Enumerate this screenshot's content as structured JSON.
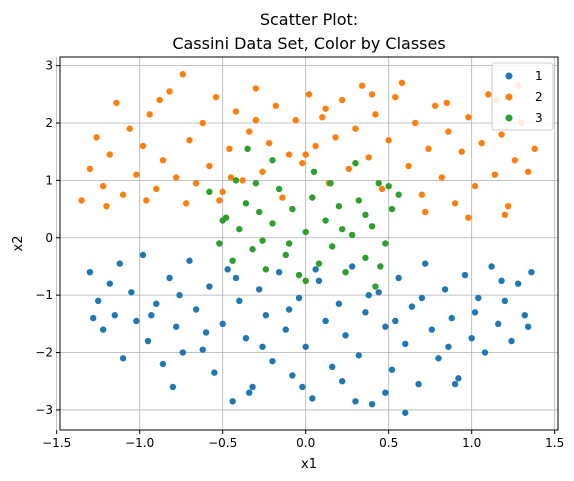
{
  "chart_data": {
    "type": "scatter",
    "title": [
      "Scatter Plot:",
      "Cassini Data Set, Color by Classes"
    ],
    "xlabel": "x1",
    "ylabel": "x2",
    "xlim": [
      -1.48,
      1.52
    ],
    "ylim": [
      -3.35,
      3.15
    ],
    "xticks": [
      -1.5,
      -1.0,
      -0.5,
      0.0,
      0.5,
      1.0,
      1.5
    ],
    "xtick_labels": [
      "−1.5",
      "−1.0",
      "−0.5",
      "0.0",
      "0.5",
      "1.0",
      "1.5"
    ],
    "yticks": [
      -3,
      -2,
      -1,
      0,
      1,
      2,
      3
    ],
    "ytick_labels": [
      "−3",
      "−2",
      "−1",
      "0",
      "1",
      "2",
      "3"
    ],
    "grid": true,
    "legend_position": "top-right",
    "series": [
      {
        "name": "1",
        "color": "#1f77b4",
        "points": [
          [
            -1.3,
            -0.6
          ],
          [
            -1.25,
            -1.1
          ],
          [
            -1.22,
            -1.6
          ],
          [
            -1.18,
            -0.8
          ],
          [
            -1.15,
            -1.35
          ],
          [
            -1.1,
            -2.1
          ],
          [
            -1.05,
            -0.95
          ],
          [
            -1.02,
            -1.45
          ],
          [
            -0.98,
            -0.3
          ],
          [
            -0.95,
            -1.8
          ],
          [
            -0.9,
            -1.15
          ],
          [
            -0.86,
            -2.2
          ],
          [
            -0.82,
            -0.7
          ],
          [
            -0.78,
            -1.55
          ],
          [
            -0.74,
            -2.0
          ],
          [
            -0.7,
            -0.4
          ],
          [
            -0.66,
            -1.25
          ],
          [
            -0.62,
            -1.95
          ],
          [
            -0.58,
            -0.85
          ],
          [
            -0.55,
            -2.35
          ],
          [
            -0.5,
            -1.5
          ],
          [
            -0.47,
            -0.55
          ],
          [
            -0.44,
            -2.85
          ],
          [
            -0.4,
            -1.1
          ],
          [
            -0.36,
            -1.75
          ],
          [
            -0.32,
            -2.6
          ],
          [
            -0.28,
            -0.9
          ],
          [
            -0.24,
            -1.35
          ],
          [
            -0.2,
            -2.15
          ],
          [
            -0.16,
            -0.6
          ],
          [
            -0.12,
            -1.6
          ],
          [
            -0.08,
            -2.4
          ],
          [
            -0.04,
            -1.05
          ],
          [
            0.0,
            -1.9
          ],
          [
            0.04,
            -2.8
          ],
          [
            0.08,
            -0.75
          ],
          [
            0.12,
            -1.45
          ],
          [
            0.16,
            -2.25
          ],
          [
            0.2,
            -1.15
          ],
          [
            0.24,
            -1.7
          ],
          [
            0.28,
            -0.5
          ],
          [
            0.32,
            -2.05
          ],
          [
            0.36,
            -1.3
          ],
          [
            0.4,
            -2.9
          ],
          [
            0.44,
            -0.95
          ],
          [
            0.48,
            -1.55
          ],
          [
            0.52,
            -2.3
          ],
          [
            0.56,
            -0.7
          ],
          [
            0.6,
            -1.85
          ],
          [
            0.64,
            -1.2
          ],
          [
            0.68,
            -2.55
          ],
          [
            0.72,
            -0.45
          ],
          [
            0.76,
            -1.6
          ],
          [
            0.8,
            -2.1
          ],
          [
            0.84,
            -0.9
          ],
          [
            0.88,
            -1.4
          ],
          [
            0.92,
            -2.45
          ],
          [
            0.96,
            -0.65
          ],
          [
            1.0,
            -1.75
          ],
          [
            1.04,
            -1.05
          ],
          [
            1.08,
            -2.0
          ],
          [
            1.12,
            -0.5
          ],
          [
            1.16,
            -1.5
          ],
          [
            1.2,
            -1.1
          ],
          [
            1.24,
            -1.8
          ],
          [
            1.28,
            -0.8
          ],
          [
            1.32,
            -1.35
          ],
          [
            1.36,
            -0.6
          ],
          [
            -1.28,
            -1.4
          ],
          [
            -1.12,
            -0.45
          ],
          [
            -0.93,
            -1.35
          ],
          [
            -0.76,
            -1.0
          ],
          [
            -0.6,
            -1.65
          ],
          [
            -0.42,
            -0.7
          ],
          [
            -0.26,
            -1.9
          ],
          [
            -0.1,
            -1.25
          ],
          [
            0.06,
            -0.55
          ],
          [
            0.22,
            -2.5
          ],
          [
            0.38,
            -1.0
          ],
          [
            0.54,
            -1.45
          ],
          [
            0.7,
            -1.05
          ],
          [
            0.86,
            -1.9
          ],
          [
            1.02,
            -1.3
          ],
          [
            1.18,
            -0.75
          ],
          [
            1.34,
            -1.55
          ],
          [
            -0.34,
            -2.7
          ],
          [
            0.3,
            -2.85
          ],
          [
            -0.8,
            -2.6
          ],
          [
            0.9,
            -2.55
          ],
          [
            0.6,
            -3.05
          ],
          [
            -0.02,
            -2.6
          ],
          [
            0.48,
            -2.7
          ]
        ]
      },
      {
        "name": "2",
        "color": "#ff7f0e",
        "points": [
          [
            -1.35,
            0.65
          ],
          [
            -1.3,
            1.2
          ],
          [
            -1.26,
            1.75
          ],
          [
            -1.22,
            0.9
          ],
          [
            -1.18,
            1.45
          ],
          [
            -1.14,
            2.35
          ],
          [
            -1.1,
            0.75
          ],
          [
            -1.06,
            1.9
          ],
          [
            -1.02,
            1.1
          ],
          [
            -0.98,
            1.6
          ],
          [
            -0.94,
            2.15
          ],
          [
            -0.9,
            0.85
          ],
          [
            -0.86,
            1.35
          ],
          [
            -0.82,
            2.55
          ],
          [
            -0.78,
            1.05
          ],
          [
            -0.74,
            2.85
          ],
          [
            -0.7,
            1.7
          ],
          [
            -0.66,
            0.95
          ],
          [
            -0.62,
            2.0
          ],
          [
            -0.58,
            1.25
          ],
          [
            -0.54,
            2.45
          ],
          [
            -0.5,
            0.8
          ],
          [
            -0.46,
            1.55
          ],
          [
            -0.42,
            2.2
          ],
          [
            -0.38,
            1.0
          ],
          [
            -0.34,
            1.85
          ],
          [
            -0.3,
            2.6
          ],
          [
            -0.26,
            1.15
          ],
          [
            -0.22,
            1.65
          ],
          [
            -0.18,
            2.3
          ],
          [
            -0.14,
            0.7
          ],
          [
            -0.1,
            1.45
          ],
          [
            -0.06,
            2.05
          ],
          [
            -0.02,
            1.3
          ],
          [
            0.02,
            2.5
          ],
          [
            0.06,
            1.6
          ],
          [
            0.1,
            2.1
          ],
          [
            0.14,
            0.95
          ],
          [
            0.18,
            1.75
          ],
          [
            0.22,
            2.4
          ],
          [
            0.26,
            1.2
          ],
          [
            0.3,
            1.9
          ],
          [
            0.34,
            2.65
          ],
          [
            0.38,
            1.4
          ],
          [
            0.42,
            2.15
          ],
          [
            0.46,
            0.85
          ],
          [
            0.5,
            1.7
          ],
          [
            0.54,
            2.45
          ],
          [
            0.58,
            2.7
          ],
          [
            0.62,
            1.25
          ],
          [
            0.66,
            2.0
          ],
          [
            0.7,
            0.75
          ],
          [
            0.74,
            1.55
          ],
          [
            0.78,
            2.3
          ],
          [
            0.82,
            1.05
          ],
          [
            0.86,
            1.85
          ],
          [
            0.9,
            0.6
          ],
          [
            0.94,
            1.5
          ],
          [
            0.98,
            2.1
          ],
          [
            1.02,
            0.9
          ],
          [
            1.06,
            1.65
          ],
          [
            1.1,
            2.5
          ],
          [
            1.14,
            1.1
          ],
          [
            1.18,
            1.8
          ],
          [
            1.22,
            0.55
          ],
          [
            1.26,
            1.35
          ],
          [
            1.3,
            2.0
          ],
          [
            1.34,
            1.15
          ],
          [
            1.38,
            1.55
          ],
          [
            -1.2,
            0.55
          ],
          [
            -0.96,
            0.65
          ],
          [
            -0.72,
            0.6
          ],
          [
            -0.52,
            0.65
          ],
          [
            0.72,
            0.45
          ],
          [
            0.98,
            0.35
          ],
          [
            1.2,
            0.4
          ],
          [
            1.28,
            2.65
          ],
          [
            1.15,
            2.4
          ],
          [
            -0.3,
            2.05
          ],
          [
            0.12,
            2.25
          ],
          [
            0.4,
            2.5
          ],
          [
            0.0,
            1.45
          ],
          [
            -0.45,
            1.05
          ],
          [
            0.85,
            2.35
          ],
          [
            -0.88,
            2.4
          ]
        ]
      },
      {
        "name": "3",
        "color": "#2ca02c",
        "points": [
          [
            -0.58,
            0.8
          ],
          [
            -0.52,
            -0.1
          ],
          [
            -0.48,
            0.35
          ],
          [
            -0.44,
            -0.4
          ],
          [
            -0.4,
            0.15
          ],
          [
            -0.36,
            0.6
          ],
          [
            -0.32,
            -0.2
          ],
          [
            -0.28,
            0.45
          ],
          [
            -0.24,
            -0.55
          ],
          [
            -0.2,
            0.25
          ],
          [
            -0.16,
            0.85
          ],
          [
            -0.12,
            -0.3
          ],
          [
            -0.08,
            0.5
          ],
          [
            -0.04,
            -0.65
          ],
          [
            0.0,
            0.1
          ],
          [
            0.04,
            0.7
          ],
          [
            0.08,
            -0.45
          ],
          [
            0.12,
            0.3
          ],
          [
            0.16,
            -0.15
          ],
          [
            0.2,
            0.55
          ],
          [
            0.24,
            -0.6
          ],
          [
            0.28,
            0.05
          ],
          [
            0.32,
            0.65
          ],
          [
            0.36,
            -0.35
          ],
          [
            0.4,
            0.2
          ],
          [
            0.44,
            0.95
          ],
          [
            0.48,
            -0.1
          ],
          [
            0.52,
            0.5
          ],
          [
            0.56,
            0.75
          ],
          [
            -0.42,
            1.0
          ],
          [
            -0.2,
            1.35
          ],
          [
            0.05,
            1.15
          ],
          [
            0.3,
            1.3
          ],
          [
            0.5,
            0.9
          ],
          [
            -0.5,
            0.3
          ],
          [
            -0.1,
            -0.1
          ],
          [
            0.15,
            0.95
          ],
          [
            0.36,
            0.4
          ],
          [
            0.45,
            -0.5
          ],
          [
            -0.3,
            0.95
          ],
          [
            0.0,
            -0.75
          ],
          [
            -0.35,
            1.55
          ],
          [
            0.42,
            -0.85
          ],
          [
            0.22,
            0.15
          ],
          [
            -0.26,
            -0.05
          ]
        ]
      }
    ]
  }
}
